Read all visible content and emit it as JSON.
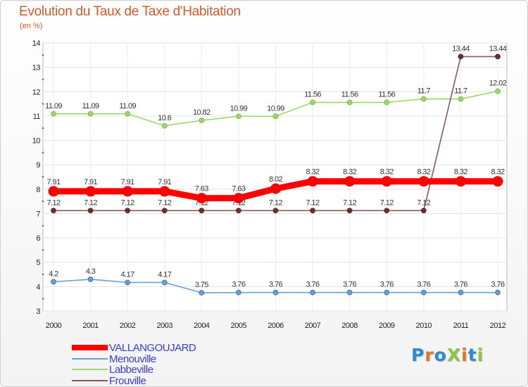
{
  "title": "Evolution du Taux de Taxe d'Habitation",
  "subtitle": "(en %)",
  "logo": {
    "text": "ProXiti",
    "letter_colors": [
      "#2a8ad8",
      "#e8731a",
      "#2a8ad8",
      "#8cc63f",
      "#e8731a",
      "#2a8ad8",
      "#8cc63f"
    ]
  },
  "chart_data": {
    "type": "line",
    "title": "Evolution du Taux de Taxe d'Habitation",
    "ylabel": "(en %)",
    "xlabel": "",
    "ylim": [
      3,
      14
    ],
    "grid": true,
    "x": [
      "2000",
      "2001",
      "2002",
      "2003",
      "2004",
      "2005",
      "2006",
      "2007",
      "2008",
      "2009",
      "2010",
      "2011",
      "2012"
    ],
    "yticks": [
      "3",
      "4",
      "5",
      "6",
      "7",
      "8",
      "9",
      "10",
      "11",
      "12",
      "13",
      "14"
    ],
    "legend_position": "bottom-left",
    "series": [
      {
        "name": "VALLANGOUJARD",
        "color": "#ff0000",
        "values": [
          7.91,
          7.91,
          7.91,
          7.91,
          7.63,
          7.63,
          8.02,
          8.32,
          8.32,
          8.32,
          8.32,
          8.32,
          8.32
        ],
        "labels": [
          "7.91",
          "7.91",
          "7.91",
          "7.91",
          "7.63",
          "7.63",
          "8.02",
          "8.32",
          "8.32",
          "8.32",
          "8.32",
          "8.32",
          "8.32"
        ]
      },
      {
        "name": "Menouville",
        "color": "#6a9fd4",
        "values": [
          4.2,
          4.3,
          4.17,
          4.17,
          3.75,
          3.76,
          3.76,
          3.76,
          3.76,
          3.76,
          3.76,
          3.76,
          3.76
        ],
        "labels": [
          "4.2",
          "4.3",
          "4.17",
          "4.17",
          "3.75",
          "3.76",
          "3.76",
          "3.76",
          "3.76",
          "3.76",
          "3.76",
          "3.76",
          "3.76"
        ]
      },
      {
        "name": "Labbeville",
        "color": "#9fd66b",
        "values": [
          11.09,
          11.09,
          11.09,
          10.6,
          10.82,
          10.99,
          10.99,
          11.56,
          11.56,
          11.56,
          11.7,
          11.7,
          12.02
        ],
        "labels": [
          "11.09",
          "11.09",
          "11.09",
          "10.6",
          "10.82",
          "10.99",
          "10.99",
          "11.56",
          "11.56",
          "11.56",
          "11.7",
          "11.7",
          "12.02"
        ]
      },
      {
        "name": "Frouville",
        "color": "#8a5858",
        "values": [
          7.12,
          7.12,
          7.12,
          7.12,
          7.12,
          7.12,
          7.12,
          7.12,
          7.12,
          7.12,
          7.12,
          13.44,
          13.44
        ],
        "labels": [
          "7.12",
          "7.12",
          "7.12",
          "7.12",
          "7.12",
          "7.12",
          "7.12",
          "7.12",
          "7.12",
          "7.12",
          "7.12",
          "13.44",
          "13.44"
        ]
      }
    ]
  }
}
